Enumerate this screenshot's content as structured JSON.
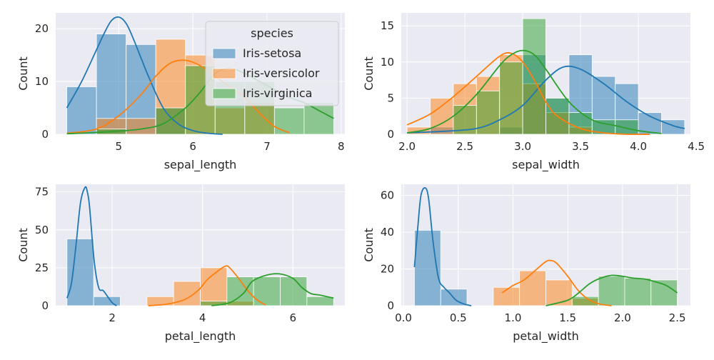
{
  "figure": {
    "style": "seaborn-darkgrid",
    "legend": {
      "title": "species",
      "placement": "top-right of first panel",
      "entries": [
        "Iris-setosa",
        "Iris-versicolor",
        "Iris-virginica"
      ]
    },
    "colors": {
      "Iris-setosa": "#1f77b4",
      "Iris-versicolor": "#ff7f0e",
      "Iris-virginica": "#2ca02c",
      "panel_bg": "#eaeaf2",
      "grid": "#ffffff"
    }
  },
  "chart_data": [
    {
      "type": "bar",
      "xlabel": "sepal_length",
      "ylabel": "Count",
      "xlim": [
        4.3,
        7.9
      ],
      "ylim": [
        0,
        23
      ],
      "xticks": [
        5,
        6,
        7,
        8
      ],
      "yticks": [
        0,
        10,
        20
      ],
      "bin_edges": [
        4.3,
        4.7,
        5.1,
        5.5,
        5.9,
        6.3,
        6.7,
        7.1,
        7.5,
        7.9
      ],
      "series": [
        {
          "name": "Iris-setosa",
          "values": [
            9,
            19,
            17,
            5,
            0,
            0,
            0,
            0,
            0
          ],
          "kde": {
            "x": [
              4.3,
              4.5,
              4.7,
              4.8,
              4.9,
              5.0,
              5.1,
              5.2,
              5.4,
              5.6,
              5.8,
              6.0,
              6.2,
              6.4
            ],
            "y": [
              5,
              10,
              16,
              19,
              21.5,
              22.2,
              21,
              18,
              11,
              5,
              2,
              0.7,
              0.2,
              0
            ]
          }
        },
        {
          "name": "Iris-versicolor",
          "values": [
            0,
            3,
            3,
            18,
            15,
            5,
            6,
            0,
            0
          ],
          "kde": {
            "x": [
              4.3,
              4.7,
              5.0,
              5.3,
              5.5,
              5.7,
              5.9,
              6.1,
              6.3,
              6.5,
              6.7,
              6.9,
              7.1,
              7.3
            ],
            "y": [
              0.2,
              1,
              3.5,
              7.5,
              11,
              13.5,
              14,
              13,
              11,
              9,
              7,
              4,
              1.5,
              0.3
            ]
          }
        },
        {
          "name": "Iris-virginica",
          "values": [
            0,
            1,
            0,
            5,
            13,
            10,
            10,
            5,
            6
          ],
          "kde": {
            "x": [
              4.3,
              4.9,
              5.3,
              5.6,
              5.9,
              6.1,
              6.3,
              6.5,
              6.7,
              6.9,
              7.1,
              7.3,
              7.5,
              7.7,
              7.9
            ],
            "y": [
              0.1,
              0.5,
              1,
              2,
              5,
              8,
              11.5,
              12.5,
              11.5,
              10,
              8.5,
              7,
              6,
              4.5,
              3
            ]
          }
        }
      ]
    },
    {
      "type": "bar",
      "xlabel": "sepal_width",
      "ylabel": "Count",
      "xlim": [
        2.0,
        4.4
      ],
      "ylim": [
        0,
        16.8
      ],
      "xticks": [
        2.0,
        2.5,
        3.0,
        3.5,
        4.0,
        4.5
      ],
      "yticks": [
        0,
        5,
        10,
        15
      ],
      "bin_edges": [
        2.0,
        2.2,
        2.4,
        2.6,
        2.8,
        3.0,
        3.2,
        3.4,
        3.6,
        3.8,
        4.0,
        4.2,
        4.4
      ],
      "series": [
        {
          "name": "Iris-setosa",
          "values": [
            0,
            1,
            0,
            0,
            1,
            11,
            5,
            11,
            8,
            7,
            3,
            2,
            1
          ],
          "kde": {
            "x": [
              2.0,
              2.3,
              2.6,
              2.8,
              3.0,
              3.2,
              3.35,
              3.5,
              3.7,
              3.9,
              4.1,
              4.3,
              4.4
            ],
            "y": [
              0.2,
              0.4,
              0.8,
              2,
              4,
              7.5,
              9.3,
              9,
              7,
              4.5,
              2.5,
              1.2,
              0.8
            ]
          }
        },
        {
          "name": "Iris-versicolor",
          "values": [
            1,
            5,
            7,
            8,
            11,
            7,
            3,
            1,
            0,
            0,
            0,
            0,
            0
          ],
          "kde": {
            "x": [
              2.0,
              2.2,
              2.4,
              2.6,
              2.8,
              2.9,
              3.0,
              3.1,
              3.2,
              3.3,
              3.5,
              3.7,
              3.9,
              4.1
            ],
            "y": [
              1.3,
              2.8,
              5.2,
              8,
              10.8,
              11.2,
              10,
              7.5,
              4.5,
              2.5,
              0.8,
              0.2,
              0,
              0
            ]
          }
        },
        {
          "name": "Iris-virginica",
          "values": [
            0,
            0,
            4,
            6,
            10,
            16,
            5,
            3,
            2,
            2,
            0,
            0,
            0
          ],
          "kde": {
            "x": [
              2.0,
              2.2,
              2.4,
              2.6,
              2.8,
              2.9,
              3.0,
              3.1,
              3.2,
              3.4,
              3.6,
              3.8,
              4.0,
              4.2
            ],
            "y": [
              0.2,
              0.8,
              2.5,
              5.5,
              9.5,
              11,
              11.6,
              11,
              9,
              4.5,
              2,
              1.2,
              0.5,
              0.1
            ]
          }
        }
      ]
    },
    {
      "type": "bar",
      "xlabel": "petal_length",
      "ylabel": "Count",
      "xlim": [
        1.0,
        6.9
      ],
      "ylim": [
        0,
        80
      ],
      "xticks": [
        2,
        4,
        6
      ],
      "yticks": [
        0,
        25,
        50,
        75
      ],
      "bin_edges": [
        1.0,
        1.59,
        2.18,
        2.77,
        3.36,
        3.95,
        4.54,
        5.13,
        5.72,
        6.31,
        6.9
      ],
      "series": [
        {
          "name": "Iris-setosa",
          "values": [
            44,
            6,
            0,
            0,
            0,
            0,
            0,
            0,
            0,
            0
          ],
          "kde": {
            "x": [
              1.0,
              1.1,
              1.2,
              1.3,
              1.4,
              1.45,
              1.5,
              1.6,
              1.7,
              1.8,
              1.9,
              2.0,
              2.1
            ],
            "y": [
              5,
              15,
              40,
              68,
              78,
              75,
              65,
              30,
              12,
              10,
              6,
              2,
              0
            ]
          }
        },
        {
          "name": "Iris-versicolor",
          "values": [
            0,
            0,
            0,
            6,
            16,
            25,
            3,
            0,
            0,
            0
          ],
          "kde": {
            "x": [
              2.8,
              3.2,
              3.6,
              3.9,
              4.1,
              4.3,
              4.5,
              4.6,
              4.8,
              5.0,
              5.2,
              5.4
            ],
            "y": [
              0,
              1,
              4,
              10,
              17,
              22,
              26,
              25,
              18,
              10,
              4,
              0.5
            ]
          }
        },
        {
          "name": "Iris-virginica",
          "values": [
            0,
            0,
            0,
            0,
            0,
            3,
            19,
            19,
            19,
            6
          ],
          "kde": {
            "x": [
              4.2,
              4.6,
              4.9,
              5.1,
              5.4,
              5.7,
              6.0,
              6.2,
              6.4,
              6.6,
              6.9
            ],
            "y": [
              0,
              2,
              8,
              16,
              20,
              21,
              18,
              12,
              8,
              7,
              5
            ]
          }
        }
      ]
    },
    {
      "type": "bar",
      "xlabel": "petal_width",
      "ylabel": "Count",
      "xlim": [
        0.1,
        2.5
      ],
      "ylim": [
        0,
        66
      ],
      "xticks": [
        0.0,
        0.5,
        1.0,
        1.5,
        2.0,
        2.5
      ],
      "yticks": [
        0,
        20,
        40,
        60
      ],
      "bin_edges": [
        0.1,
        0.34,
        0.58,
        0.82,
        1.06,
        1.3,
        1.54,
        1.78,
        2.02,
        2.26,
        2.5
      ],
      "series": [
        {
          "name": "Iris-setosa",
          "values": [
            41,
            9,
            0,
            0,
            0,
            0,
            0,
            0,
            0,
            0
          ],
          "kde": {
            "x": [
              0.1,
              0.13,
              0.16,
              0.2,
              0.23,
              0.27,
              0.32,
              0.37,
              0.42,
              0.48,
              0.55,
              0.62
            ],
            "y": [
              21,
              42,
              60,
              64,
              58,
              35,
              15,
              10,
              7,
              3,
              1,
              0
            ]
          }
        },
        {
          "name": "Iris-versicolor",
          "values": [
            0,
            0,
            0,
            10,
            19,
            14,
            4,
            0,
            0,
            0
          ],
          "kde": {
            "x": [
              0.9,
              0.95,
              1.0,
              1.1,
              1.2,
              1.3,
              1.35,
              1.4,
              1.5,
              1.6,
              1.7,
              1.8,
              1.9
            ],
            "y": [
              7,
              9,
              11,
              14,
              19,
              24,
              24.5,
              23,
              16,
              8,
              3,
              0.8,
              0
            ]
          }
        },
        {
          "name": "Iris-virginica",
          "values": [
            0,
            0,
            0,
            0,
            0,
            0,
            5,
            16,
            15,
            14
          ],
          "kde": {
            "x": [
              1.3,
              1.5,
              1.6,
              1.7,
              1.8,
              1.9,
              2.0,
              2.1,
              2.2,
              2.3,
              2.4,
              2.5
            ],
            "y": [
              0,
              3,
              7,
              12,
              15,
              16.5,
              16,
              15,
              14.5,
              13,
              11,
              7
            ]
          }
        }
      ]
    }
  ]
}
